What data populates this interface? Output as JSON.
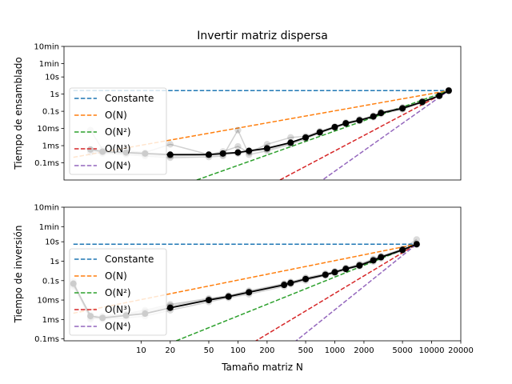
{
  "title": "Invertir matriz dispersa",
  "xlabel": "Tamaño matriz N",
  "colors": {
    "Constante": "#1f77b4",
    "O(N)": "#ff7f0e",
    "O(N²)": "#2ca02c",
    "O(N³)": "#d62728",
    "O(N⁴)": "#9467bd",
    "data": "#000000"
  },
  "chart_data": [
    {
      "type": "line",
      "ylabel": "Tiempo de ensamblado",
      "xscale": "log",
      "yscale": "log",
      "xlim": [
        1.6,
        20000
      ],
      "ylim": [
        1e-05,
        600
      ],
      "y_ticks": [
        {
          "value": 600,
          "label": "10min"
        },
        {
          "value": 60,
          "label": "1min"
        },
        {
          "value": 10,
          "label": "10s"
        },
        {
          "value": 1,
          "label": "1s"
        },
        {
          "value": 0.1,
          "label": "0.1s"
        },
        {
          "value": 0.01,
          "label": "10ms"
        },
        {
          "value": 0.001,
          "label": "1ms"
        },
        {
          "value": 0.0001,
          "label": "0.1ms"
        }
      ],
      "legend_entries": [
        "Constante",
        "O(N)",
        "O(N²)",
        "O(N³)",
        "O(N⁴)"
      ],
      "legend_position": "lower-left",
      "reference_lines": [
        {
          "name": "Constante",
          "x": [
            2,
            15000
          ],
          "y": [
            1.6,
            1.6
          ]
        },
        {
          "name": "O(N)",
          "x": [
            2,
            15000
          ],
          "y": [
            0.00021,
            1.6
          ]
        },
        {
          "name": "O(N²)",
          "x": [
            10.5,
            15000
          ],
          "y": [
            7.8e-07,
            1.6
          ]
        },
        {
          "name": "O(N³)",
          "x": [
            140,
            15000
          ],
          "y": [
            1.4e-06,
            1.6
          ]
        },
        {
          "name": "O(N⁴)",
          "x": [
            600,
            15000
          ],
          "y": [
            4.2e-06,
            1.6
          ]
        }
      ],
      "mean_series": {
        "x": [
          3,
          4,
          7,
          11,
          20,
          50,
          70,
          100,
          130,
          200,
          350,
          500,
          700,
          1000,
          1300,
          1800,
          2500,
          3000,
          5000,
          8000,
          12000,
          15000
        ],
        "y": [
          0.0006,
          0.00045,
          0.0004,
          0.00035,
          0.0003,
          0.0003,
          0.00035,
          0.0004,
          0.0005,
          0.0007,
          0.0015,
          0.003,
          0.006,
          0.012,
          0.02,
          0.03,
          0.05,
          0.08,
          0.15,
          0.35,
          0.8,
          1.6
        ]
      },
      "runs": [
        {
          "x": [
            3,
            4,
            7,
            11,
            20,
            50,
            70,
            100,
            130,
            200,
            350,
            500,
            700,
            1000,
            1300,
            1800,
            2500,
            3000,
            5000,
            8000,
            12000,
            15000
          ],
          "y": [
            0.008,
            0.0006,
            0.0005,
            0.0004,
            0.0012,
            0.0003,
            0.00045,
            0.0009,
            0.0004,
            0.0012,
            0.003,
            0.0035,
            0.007,
            0.013,
            0.022,
            0.034,
            0.055,
            0.09,
            0.17,
            0.38,
            0.85,
            1.7
          ]
        },
        {
          "x": [
            3,
            4,
            7,
            11,
            20,
            50,
            70,
            100,
            130,
            200,
            350,
            500,
            700,
            1000,
            1300,
            1800,
            2500,
            3000,
            5000,
            8000,
            12000,
            15000
          ],
          "y": [
            0.0004,
            0.00035,
            0.0003,
            0.00025,
            0.0002,
            0.00022,
            0.00025,
            0.008,
            0.0003,
            0.0005,
            0.0012,
            0.0025,
            0.0055,
            0.011,
            0.018,
            0.028,
            0.045,
            0.07,
            0.13,
            0.32,
            0.75,
            1.5
          ]
        },
        {
          "x": [
            3,
            4,
            7,
            11,
            20,
            50,
            70,
            100,
            130,
            200,
            350,
            500,
            700,
            1000,
            1300,
            1800,
            2500,
            3000,
            5000,
            8000,
            12000,
            15000
          ],
          "y": [
            0.0005,
            0.0004,
            0.00035,
            0.0003,
            0.00025,
            0.00028,
            0.0003,
            0.00035,
            0.00045,
            0.0006,
            0.0014,
            0.0028,
            0.006,
            0.012,
            0.02,
            0.03,
            0.05,
            0.08,
            0.14,
            0.34,
            0.8,
            1.6
          ]
        }
      ]
    },
    {
      "type": "line",
      "ylabel": "Tiempo de inversión",
      "xscale": "log",
      "yscale": "log",
      "xlim": [
        1.6,
        20000
      ],
      "ylim": [
        8e-05,
        600
      ],
      "y_ticks": [
        {
          "value": 600,
          "label": "10min"
        },
        {
          "value": 60,
          "label": "1min"
        },
        {
          "value": 10,
          "label": "10s"
        },
        {
          "value": 1,
          "label": "1s"
        },
        {
          "value": 0.1,
          "label": "0.1s"
        },
        {
          "value": 0.01,
          "label": "10ms"
        },
        {
          "value": 0.001,
          "label": "1ms"
        },
        {
          "value": 0.0001,
          "label": "0.1ms"
        }
      ],
      "x_ticks": [
        {
          "value": 10,
          "label": "10"
        },
        {
          "value": 20,
          "label": "20"
        },
        {
          "value": 50,
          "label": "50"
        },
        {
          "value": 100,
          "label": "100"
        },
        {
          "value": 200,
          "label": "200"
        },
        {
          "value": 500,
          "label": "500"
        },
        {
          "value": 1000,
          "label": "1000"
        },
        {
          "value": 2000,
          "label": "2000"
        },
        {
          "value": 5000,
          "label": "5000"
        },
        {
          "value": 10000,
          "label": "10000"
        },
        {
          "value": 20000,
          "label": "20000"
        }
      ],
      "legend_entries": [
        "Constante",
        "O(N)",
        "O(N²)",
        "O(N³)",
        "O(N⁴)"
      ],
      "legend_position": "lower-left",
      "reference_lines": [
        {
          "name": "Constante",
          "x": [
            2,
            7000
          ],
          "y": [
            7.5,
            7.5
          ]
        },
        {
          "name": "O(N)",
          "x": [
            2,
            7000
          ],
          "y": [
            0.0021,
            7.5
          ]
        },
        {
          "name": "O(N²)",
          "x": [
            10,
            7000
          ],
          "y": [
            1.5e-05,
            7.5
          ]
        },
        {
          "name": "O(N³)",
          "x": [
            100,
            7000
          ],
          "y": [
            2.2e-05,
            7.5
          ]
        },
        {
          "name": "O(N⁴)",
          "x": [
            380,
            7000
          ],
          "y": [
            6.6e-05,
            7.5
          ]
        }
      ],
      "mean_series": {
        "x": [
          2,
          3,
          4,
          7,
          11,
          20,
          50,
          80,
          130,
          300,
          350,
          500,
          800,
          1000,
          1300,
          1800,
          2500,
          3000,
          5000,
          7000
        ],
        "y": [
          0.07,
          0.0015,
          0.0012,
          0.0016,
          0.002,
          0.004,
          0.01,
          0.015,
          0.025,
          0.06,
          0.075,
          0.12,
          0.2,
          0.27,
          0.4,
          0.6,
          1.1,
          1.6,
          3.8,
          7.5
        ]
      },
      "runs": [
        {
          "x": [
            2,
            3,
            4,
            7,
            11,
            20,
            50,
            80,
            130,
            300,
            350,
            500,
            800,
            1000,
            1300,
            1800,
            2500,
            3000,
            5000,
            7000
          ],
          "y": [
            0.09,
            0.001,
            0.0015,
            0.002,
            0.003,
            0.006,
            0.012,
            0.017,
            0.03,
            0.07,
            0.085,
            0.14,
            0.23,
            0.3,
            0.45,
            0.7,
            1.3,
            1.8,
            4.3,
            13
          ]
        },
        {
          "x": [
            2,
            3,
            4,
            7,
            11,
            20,
            50,
            80,
            130,
            300,
            350,
            500,
            800,
            1000,
            1300,
            1800,
            2500,
            3000,
            5000,
            7000
          ],
          "y": [
            0.05,
            0.0012,
            0.001,
            0.0012,
            0.0015,
            0.003,
            0.008,
            0.013,
            0.02,
            0.05,
            0.065,
            0.1,
            0.18,
            0.24,
            0.36,
            0.55,
            0.95,
            1.4,
            3.4,
            7
          ]
        },
        {
          "x": [
            2,
            3,
            4,
            7,
            11,
            20,
            50,
            80,
            130,
            300,
            350,
            500,
            800,
            1000,
            1300,
            1800,
            2500,
            3000,
            5000,
            7000
          ],
          "y": [
            0.06,
            0.0018,
            0.0013,
            0.0018,
            0.0025,
            0.005,
            0.011,
            0.016,
            0.027,
            0.065,
            0.08,
            0.13,
            0.21,
            0.28,
            0.42,
            0.65,
            1.2,
            1.7,
            4,
            8
          ]
        }
      ]
    }
  ]
}
